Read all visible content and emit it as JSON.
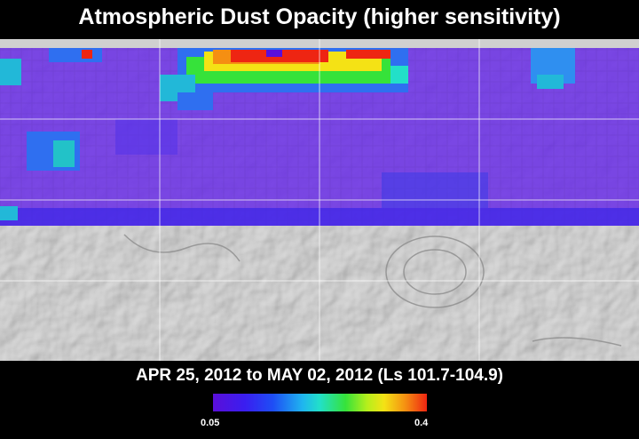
{
  "title": "Atmospheric Dust Opacity (higher sensitivity)",
  "date_range": "APR 25, 2012 to MAY 02, 2012 (Ls 101.7-104.9)",
  "colorbar": {
    "min_label": "0.05",
    "max_label": "0.4",
    "colors": [
      "#5a0fd9",
      "#3a1ef0",
      "#1e4ef5",
      "#1fb6ef",
      "#22e0c8",
      "#36e23a",
      "#b5ef1c",
      "#f4e215",
      "#f58f12",
      "#ee2512"
    ]
  },
  "map": {
    "colors": {
      "background_low": "#6a2ee6",
      "terrain": "#c2c2c2",
      "grid": "#ffffff",
      "high": "#ee2512",
      "mid": "#f4e215",
      "green": "#36e23a",
      "cyan": "#22b8d8"
    }
  }
}
